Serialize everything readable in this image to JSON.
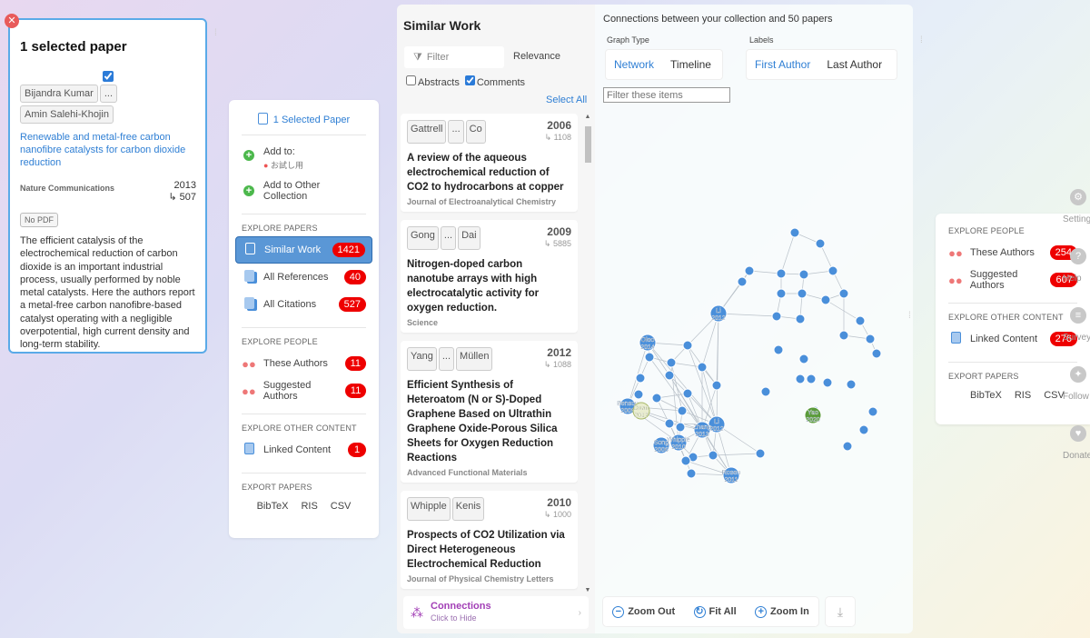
{
  "selected": {
    "title": "1 selected paper",
    "authors": [
      "Bijandra Kumar",
      "...",
      "Amin Salehi-Khojin"
    ],
    "paper_title": "Renewable and metal-free carbon nanofibre catalysts for carbon dioxide reduction",
    "journal": "Nature Communications",
    "year": "2013",
    "citations": "↳ 507",
    "no_pdf": "No PDF",
    "abstract": "The efficient catalysis of the electrochemical reduction of carbon dioxide is an important industrial process, usually performed by noble metal catalysts. Here the authors report a metal-free carbon nanofibre-based catalyst operating with a negligible overpotential, high current density and long-term stability."
  },
  "menu": {
    "header": "1 Selected Paper",
    "add_to": "Add to:",
    "add_to_sub": "お試し用",
    "add_other": "Add to Other Collection",
    "explore_papers": "EXPLORE PAPERS",
    "similar_work": "Similar Work",
    "similar_count": "1421",
    "all_refs": "All References",
    "refs_count": "40",
    "all_cits": "All Citations",
    "cits_count": "527",
    "explore_people": "EXPLORE PEOPLE",
    "these_authors": "These Authors",
    "these_count": "11",
    "suggested_authors": "Suggested Authors",
    "suggested_count": "11",
    "explore_other": "EXPLORE OTHER CONTENT",
    "linked": "Linked Content",
    "linked_count": "1",
    "export": "EXPORT PAPERS",
    "bibtex": "BibTeX",
    "ris": "RIS",
    "csv": "CSV"
  },
  "similar": {
    "title": "Similar Work",
    "filter_placeholder": "Filter",
    "sort": "Relevance",
    "abstracts": "Abstracts",
    "comments": "Comments",
    "select_all": "Select All",
    "cards": [
      {
        "a1": "Gattrell",
        "a2": "...",
        "a3": "Co",
        "year": "2006",
        "cit": "↳ 1108",
        "title": "A review of the aqueous electrochemical reduction of CO2 to hydrocarbons at copper",
        "journal": "Journal of Electroanalytical Chemistry"
      },
      {
        "a1": "Gong",
        "a2": "...",
        "a3": "Dai",
        "year": "2009",
        "cit": "↳ 5885",
        "title": "Nitrogen-doped carbon nanotube arrays with high electrocatalytic activity for oxygen reduction.",
        "journal": "Science"
      },
      {
        "a1": "Yang",
        "a2": "...",
        "a3": "Müllen",
        "year": "2012",
        "cit": "↳ 1088",
        "title": "Efficient Synthesis of Heteroatom (N or S)-Doped Graphene Based on Ultrathin Graphene Oxide-Porous Silica Sheets for Oxygen Reduction Reactions",
        "journal": "Advanced Functional Materials"
      },
      {
        "a1": "Whipple",
        "a2": "Kenis",
        "a3": "",
        "year": "2010",
        "cit": "↳ 1000",
        "title": "Prospects of CO2 Utilization via Direct Heterogeneous Electrochemical Reduction",
        "journal": "Journal of Physical Chemistry Letters"
      }
    ],
    "connections": "Connections",
    "connections_sub": "Click to Hide"
  },
  "graph": {
    "header": "Connections between your collection and 50 papers",
    "graph_type": "Graph Type",
    "network": "Network",
    "timeline": "Timeline",
    "labels": "Labels",
    "first_author": "First Author",
    "last_author": "Last Author",
    "filter_placeholder": "Filter these items",
    "zoom_out": "Zoom Out",
    "fit_all": "Fit All",
    "zoom_in": "Zoom In",
    "node_labels": [
      "Oleo 2014",
      "Benson 2009",
      "Duan 2017",
      "Song 2006",
      "Zhang 2013",
      "Whipple 2010",
      "Rosen 2011",
      "Li 2012",
      "Li 2012",
      "Yao 2020"
    ],
    "accent": "#4a8fda",
    "selected_node_color": "#5a9b3a"
  },
  "right": {
    "explore_people": "EXPLORE PEOPLE",
    "these_authors": "These Authors",
    "these_count": "254",
    "suggested_authors": "Suggested Authors",
    "suggested_count": "607",
    "explore_other": "EXPLORE OTHER CONTENT",
    "linked": "Linked Content",
    "linked_count": "276",
    "export": "EXPORT PAPERS",
    "bibtex": "BibTeX",
    "ris": "RIS",
    "csv": "CSV",
    "settings": "Settings",
    "help": "Help",
    "survey": "Survey",
    "follow": "Follow",
    "donate": "Donate"
  }
}
